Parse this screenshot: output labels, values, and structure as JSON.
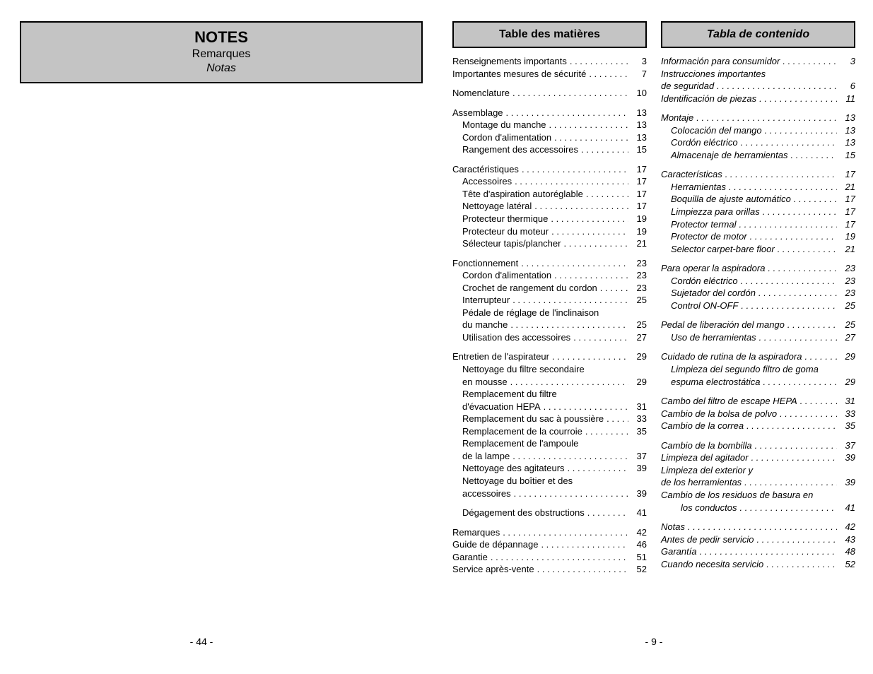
{
  "leftPage": {
    "notes": {
      "title": "NOTES",
      "sub1": "Remarques",
      "sub2": "Notas"
    },
    "pageNumber": "- 44 -"
  },
  "rightPage": {
    "pageNumber": "- 9 -",
    "french": {
      "header": "Table des matières",
      "groups": [
        [
          {
            "label": "Renseignements importants",
            "pg": "3",
            "indent": 0
          },
          {
            "label": "Importantes mesures de sécurité",
            "pg": "7",
            "indent": 0
          }
        ],
        [
          {
            "label": "Nomenclature",
            "pg": "10",
            "indent": 0
          }
        ],
        [
          {
            "label": "Assemblage",
            "pg": "13",
            "indent": 0
          },
          {
            "label": "Montage du manche",
            "pg": "13",
            "indent": 1
          },
          {
            "label": "Cordon d'alimentation",
            "pg": "13",
            "indent": 1
          },
          {
            "label": "Rangement des accessoires",
            "pg": "15",
            "indent": 1
          }
        ],
        [
          {
            "label": "Caractéristiques",
            "pg": "17",
            "indent": 0
          },
          {
            "label": "Accessoires",
            "pg": "17",
            "indent": 1
          },
          {
            "label": "Tête d'aspiration autoréglable",
            "pg": "17",
            "indent": 1
          },
          {
            "label": "Nettoyage latéral",
            "pg": "17",
            "indent": 1
          },
          {
            "label": "Protecteur thermique",
            "pg": "19",
            "indent": 1
          },
          {
            "label": "Protecteur du moteur",
            "pg": "19",
            "indent": 1
          },
          {
            "label": "Sélecteur tapis/plancher",
            "pg": "21",
            "indent": 1
          }
        ],
        [
          {
            "label": "Fonctionnement",
            "pg": "23",
            "indent": 0
          },
          {
            "label": "Cordon d'alimentation",
            "pg": "23",
            "indent": 1
          },
          {
            "label": "Crochet de rangement du cordon",
            "pg": "23",
            "indent": 1
          },
          {
            "label": "Interrupteur",
            "pg": "25",
            "indent": 1
          },
          {
            "label": "Pédale de réglage de l'inclinaison",
            "pg": "",
            "indent": 1,
            "nopg": true
          },
          {
            "label": "du manche",
            "pg": "25",
            "indent": 1
          },
          {
            "label": "Utilisation des accessoires",
            "pg": "27",
            "indent": 1
          }
        ],
        [
          {
            "label": "Entretien de l'aspirateur",
            "pg": "29",
            "indent": 0
          },
          {
            "label": "Nettoyage du filtre secondaire",
            "pg": "",
            "indent": 1,
            "nopg": true
          },
          {
            "label": "en mousse",
            "pg": "29",
            "indent": 1
          },
          {
            "label": "Remplacement du filtre",
            "pg": "",
            "indent": 1,
            "nopg": true
          },
          {
            "label": "d'évacuation HEPA",
            "pg": "31",
            "indent": 1
          },
          {
            "label": "Remplacement du sac à poussière",
            "pg": "33",
            "indent": 1
          },
          {
            "label": "Remplacement de la courroie",
            "pg": "35",
            "indent": 1
          },
          {
            "label": "Remplacement de l'ampoule",
            "pg": "",
            "indent": 1,
            "nopg": true
          },
          {
            "label": "de la lampe",
            "pg": "37",
            "indent": 1
          },
          {
            "label": "Nettoyage des agitateurs",
            "pg": "39",
            "indent": 1
          },
          {
            "label": "Nettoyage du boîtier et des",
            "pg": "",
            "indent": 1,
            "nopg": true
          },
          {
            "label": "accessoires",
            "pg": "39",
            "indent": 1
          }
        ],
        [
          {
            "label": "Dégagement des obstructions",
            "pg": "41",
            "indent": 1
          }
        ],
        [
          {
            "label": "Remarques",
            "pg": "42",
            "indent": 0
          },
          {
            "label": "Guide de dépannage",
            "pg": "46",
            "indent": 0
          },
          {
            "label": "Garantie",
            "pg": "51",
            "indent": 0
          },
          {
            "label": "Service après-vente",
            "pg": "52",
            "indent": 0
          }
        ]
      ]
    },
    "spanish": {
      "header": "Tabla de contenido",
      "groups": [
        [
          {
            "label": "Información para consumidor",
            "pg": "3",
            "indent": 0
          },
          {
            "label": "Instrucciones importantes",
            "pg": "",
            "indent": 0,
            "nopg": true
          },
          {
            "label": "de seguridad",
            "pg": "6",
            "indent": 0
          },
          {
            "label": "Identificación de piezas",
            "pg": "11",
            "indent": 0
          }
        ],
        [
          {
            "label": "Montaje",
            "pg": "13",
            "indent": 0
          },
          {
            "label": "Colocación del mango",
            "pg": "13",
            "indent": 1
          },
          {
            "label": "Cordón eléctrico",
            "pg": "13",
            "indent": 1
          },
          {
            "label": "Almacenaje de herramientas",
            "pg": "15",
            "indent": 1
          }
        ],
        [
          {
            "label": "Características",
            "pg": "17",
            "indent": 0
          },
          {
            "label": "Herramientas",
            "pg": "21",
            "indent": 1
          },
          {
            "label": "Boquilla de ajuste automático",
            "pg": "17",
            "indent": 1
          },
          {
            "label": "Limpiezza para orillas",
            "pg": "17",
            "indent": 1
          },
          {
            "label": "Protector termal",
            "pg": "17",
            "indent": 1
          },
          {
            "label": "Protector de motor",
            "pg": "19",
            "indent": 1
          },
          {
            "label": "Selector carpet-bare floor",
            "pg": "21",
            "indent": 1
          }
        ],
        [
          {
            "label": "Para operar la aspiradora",
            "pg": "23",
            "indent": 0
          },
          {
            "label": "Cordón eléctrico",
            "pg": "23",
            "indent": 1
          },
          {
            "label": "Sujetador del cordón",
            "pg": "23",
            "indent": 1
          },
          {
            "label": "Control ON-OFF",
            "pg": "25",
            "indent": 1
          }
        ],
        [
          {
            "label": "Pedal de liberación del mango",
            "pg": "25",
            "indent": 0
          },
          {
            "label": "Uso de herramientas",
            "pg": "27",
            "indent": 1
          }
        ],
        [
          {
            "label": "Cuidado de rutina de la aspiradora",
            "pg": "29",
            "indent": 0
          },
          {
            "label": "Limpieza del segundo filtro de goma",
            "pg": "",
            "indent": 1,
            "nopg": true
          },
          {
            "label": "espuma electrostática",
            "pg": "29",
            "indent": 1
          }
        ],
        [
          {
            "label": "Cambo del filtro de escape HEPA",
            "pg": "31",
            "indent": 0
          },
          {
            "label": "Cambio de la bolsa de polvo",
            "pg": "33",
            "indent": 0
          },
          {
            "label": "Cambio de la correa",
            "pg": "35",
            "indent": 0
          }
        ],
        [
          {
            "label": "Cambio de la bombilla",
            "pg": "37",
            "indent": 0
          },
          {
            "label": "Limpieza del agitador",
            "pg": "39",
            "indent": 0
          },
          {
            "label": "Limpieza del exterior y",
            "pg": "",
            "indent": 0,
            "nopg": true
          },
          {
            "label": "de los herramientas",
            "pg": "39",
            "indent": 0
          },
          {
            "label": "Cambio de los residuos de basura en",
            "pg": "",
            "indent": 0,
            "nopg": true
          },
          {
            "label": "los conductos",
            "pg": "41",
            "indent": 2
          }
        ],
        [
          {
            "label": "Notas",
            "pg": "42",
            "indent": 0
          },
          {
            "label": "Antes de pedir servicio",
            "pg": "43",
            "indent": 0
          },
          {
            "label": "Garantía",
            "pg": "48",
            "indent": 0
          },
          {
            "label": "Cuando necesita servicio",
            "pg": "52",
            "indent": 0
          }
        ]
      ]
    }
  }
}
